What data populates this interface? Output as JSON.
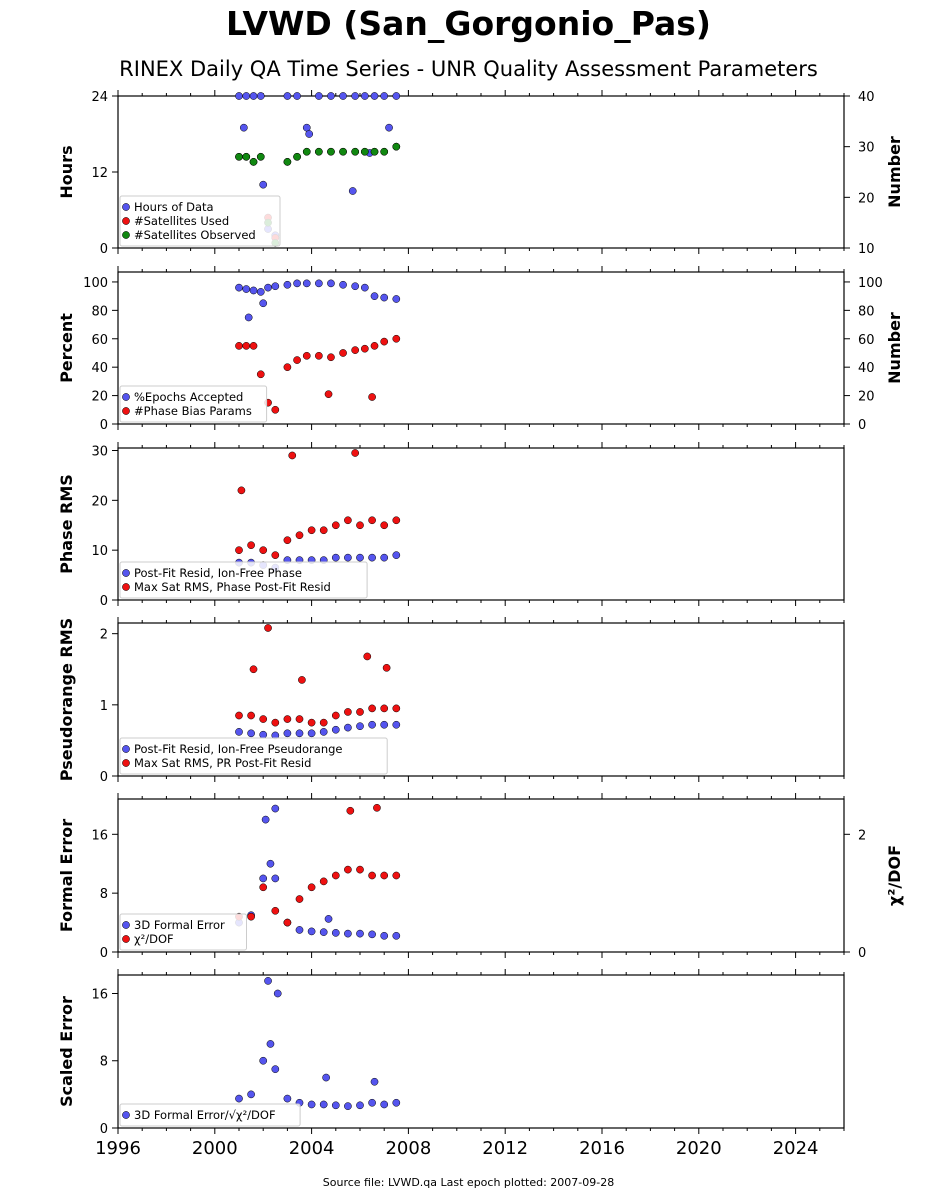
{
  "title": "LVWD (San_Gorgonio_Pas)",
  "subtitle": "RINEX Daily QA Time Series - UNR Quality Assessment Parameters",
  "footer": "Source file: LVWD.qa Last epoch plotted: 2007-09-28",
  "colors": {
    "blue": "#5555ee",
    "red": "#ee1111",
    "green": "#118811"
  },
  "chart_data": [
    {
      "type": "scatter",
      "ylabel": "Hours",
      "ylabel_right": "Number",
      "ylim": [
        0,
        24
      ],
      "yticks": [
        0,
        12,
        24
      ],
      "ylim_right": [
        10,
        40
      ],
      "yticks_right": [
        10,
        20,
        30,
        40
      ],
      "legend_position": "lower-left",
      "series": [
        {
          "name": "Hours of Data",
          "color": "#5555ee",
          "axis": "left",
          "x": [
            2001.0,
            2001.3,
            2001.6,
            2001.9,
            2002.2,
            2002.5,
            2003.0,
            2003.4,
            2003.8,
            2004.3,
            2004.8,
            2005.3,
            2005.8,
            2006.2,
            2006.6,
            2007.0,
            2007.5,
            2001.2,
            2002.0,
            2003.9,
            2005.7,
            2006.4,
            2007.2
          ],
          "y": [
            24,
            24,
            24,
            24,
            3,
            2,
            24,
            24,
            19,
            24,
            24,
            24,
            24,
            24,
            24,
            24,
            24,
            19,
            10,
            18,
            9,
            15,
            19
          ]
        },
        {
          "name": "#Satellites Used",
          "color": "#ee1111",
          "axis": "right",
          "x": [
            2001.0,
            2001.3,
            2001.6,
            2001.9,
            2002.2,
            2002.5,
            2003.0,
            2003.4,
            2003.8,
            2004.3,
            2004.8,
            2005.3,
            2005.8,
            2006.2,
            2006.6,
            2007.0,
            2007.5
          ],
          "y": [
            28,
            28,
            27,
            28,
            16,
            12,
            27,
            28,
            29,
            29,
            29,
            29,
            29,
            29,
            29,
            29,
            30
          ]
        },
        {
          "name": "#Satellites Observed",
          "color": "#118811",
          "axis": "right",
          "x": [
            2001.0,
            2001.3,
            2001.6,
            2001.9,
            2002.2,
            2002.5,
            2003.0,
            2003.4,
            2003.8,
            2004.3,
            2004.8,
            2005.3,
            2005.8,
            2006.2,
            2006.6,
            2007.0,
            2007.5
          ],
          "y": [
            28,
            28,
            27,
            28,
            15,
            11,
            27,
            28,
            29,
            29,
            29,
            29,
            29,
            29,
            29,
            29,
            30
          ]
        }
      ]
    },
    {
      "type": "scatter",
      "ylabel": "Percent",
      "ylabel_right": "Number",
      "ylim": [
        0,
        107
      ],
      "yticks": [
        0,
        20,
        40,
        60,
        80,
        100
      ],
      "ylim_right": [
        0,
        107
      ],
      "yticks_right": [
        0,
        20,
        40,
        60,
        80,
        100
      ],
      "legend_position": "lower-left",
      "series": [
        {
          "name": "%Epochs Accepted",
          "color": "#5555ee",
          "axis": "left",
          "x": [
            2001.0,
            2001.3,
            2001.6,
            2001.9,
            2002.2,
            2002.5,
            2003.0,
            2003.4,
            2003.8,
            2004.3,
            2004.8,
            2005.3,
            2005.8,
            2006.2,
            2006.6,
            2007.0,
            2007.5,
            2001.4,
            2002.0
          ],
          "y": [
            96,
            95,
            94,
            93,
            96,
            97,
            98,
            99,
            99,
            99,
            99,
            98,
            97,
            96,
            90,
            89,
            88,
            75,
            85
          ]
        },
        {
          "name": "#Phase Bias Params",
          "color": "#ee1111",
          "axis": "right",
          "x": [
            2001.0,
            2001.3,
            2001.6,
            2001.9,
            2002.2,
            2002.5,
            2003.0,
            2003.4,
            2003.8,
            2004.3,
            2004.8,
            2005.3,
            2005.8,
            2006.2,
            2006.6,
            2007.0,
            2007.5,
            2004.7,
            2006.5
          ],
          "y": [
            55,
            55,
            55,
            35,
            15,
            10,
            40,
            45,
            48,
            48,
            47,
            50,
            52,
            53,
            55,
            58,
            60,
            21,
            19
          ]
        }
      ]
    },
    {
      "type": "scatter",
      "ylabel": "Phase RMS",
      "ylim": [
        0,
        30.5
      ],
      "yticks": [
        0,
        10,
        20,
        30
      ],
      "legend_position": "lower-left",
      "series": [
        {
          "name": "Post-Fit Resid, Ion-Free Phase",
          "color": "#5555ee",
          "x": [
            2001.0,
            2001.5,
            2002.0,
            2002.5,
            2003.0,
            2003.5,
            2004.0,
            2004.5,
            2005.0,
            2005.5,
            2006.0,
            2006.5,
            2007.0,
            2007.5
          ],
          "y": [
            7.5,
            7.5,
            7.0,
            6.5,
            8.0,
            8.0,
            8.0,
            8.0,
            8.5,
            8.5,
            8.5,
            8.5,
            8.5,
            9.0
          ]
        },
        {
          "name": "Max Sat RMS, Phase Post-Fit Resid",
          "color": "#ee1111",
          "x": [
            2001.0,
            2001.5,
            2002.0,
            2002.5,
            2003.0,
            2003.5,
            2004.0,
            2004.5,
            2005.0,
            2005.5,
            2006.0,
            2006.5,
            2007.0,
            2007.5,
            2003.2,
            2005.8,
            2001.1
          ],
          "y": [
            10,
            11,
            10,
            9,
            12,
            13,
            14,
            14,
            15,
            16,
            15,
            16,
            15,
            16,
            29,
            29.5,
            22
          ]
        }
      ]
    },
    {
      "type": "scatter",
      "ylabel": "Pseudorange RMS",
      "ylim": [
        0,
        2.15
      ],
      "yticks": [
        0,
        1,
        2
      ],
      "legend_position": "lower-left",
      "series": [
        {
          "name": "Post-Fit Resid, Ion-Free Pseudorange",
          "color": "#5555ee",
          "x": [
            2001.0,
            2001.5,
            2002.0,
            2002.5,
            2003.0,
            2003.5,
            2004.0,
            2004.5,
            2005.0,
            2005.5,
            2006.0,
            2006.5,
            2007.0,
            2007.5
          ],
          "y": [
            0.62,
            0.6,
            0.58,
            0.57,
            0.6,
            0.6,
            0.6,
            0.62,
            0.65,
            0.68,
            0.7,
            0.72,
            0.72,
            0.72
          ]
        },
        {
          "name": "Max Sat RMS, PR Post-Fit Resid",
          "color": "#ee1111",
          "x": [
            2001.0,
            2001.5,
            2002.0,
            2002.5,
            2003.0,
            2003.5,
            2004.0,
            2004.5,
            2005.0,
            2005.5,
            2006.0,
            2006.5,
            2007.0,
            2007.5,
            2002.2,
            2001.6,
            2006.3,
            2007.1,
            2003.6
          ],
          "y": [
            0.85,
            0.85,
            0.8,
            0.75,
            0.8,
            0.8,
            0.75,
            0.75,
            0.85,
            0.9,
            0.9,
            0.95,
            0.95,
            0.95,
            2.08,
            1.5,
            1.68,
            1.52,
            1.35
          ]
        }
      ]
    },
    {
      "type": "scatter",
      "ylabel": "Formal Error",
      "ylabel_right": "χ²/DOF",
      "ylim": [
        0,
        20.8
      ],
      "yticks": [
        0,
        8,
        16
      ],
      "ylim_right": [
        0,
        2.6
      ],
      "yticks_right": [
        0,
        2
      ],
      "legend_position": "lower-left",
      "series": [
        {
          "name": "3D Formal Error",
          "color": "#5555ee",
          "axis": "left",
          "x": [
            2001.0,
            2001.5,
            2002.0,
            2002.3,
            2002.5,
            2003.0,
            2003.5,
            2004.0,
            2004.5,
            2005.0,
            2005.5,
            2006.0,
            2006.5,
            2007.0,
            2007.5,
            2002.1,
            2002.5,
            2004.7
          ],
          "y": [
            4,
            5,
            10,
            12,
            10,
            4,
            3,
            2.8,
            2.7,
            2.6,
            2.5,
            2.5,
            2.4,
            2.2,
            2.2,
            18,
            19.5,
            4.5
          ]
        },
        {
          "name": "χ²/DOF",
          "color": "#ee1111",
          "axis": "right",
          "x": [
            2001.0,
            2001.5,
            2002.0,
            2002.5,
            2003.0,
            2003.5,
            2004.0,
            2004.5,
            2005.0,
            2005.5,
            2006.0,
            2006.5,
            2007.0,
            2007.5,
            2005.6,
            2006.7
          ],
          "y": [
            0.6,
            0.6,
            1.1,
            0.7,
            0.5,
            0.9,
            1.1,
            1.2,
            1.3,
            1.4,
            1.4,
            1.3,
            1.3,
            1.3,
            2.4,
            2.45
          ]
        }
      ]
    },
    {
      "type": "scatter",
      "ylabel": "Scaled Error",
      "ylim": [
        0,
        18.2
      ],
      "yticks": [
        0,
        8,
        16
      ],
      "legend_position": "lower-left",
      "series": [
        {
          "name": "3D Formal Error/√χ²/DOF",
          "color": "#5555ee",
          "x": [
            2001.0,
            2001.5,
            2002.0,
            2002.3,
            2002.5,
            2003.0,
            2003.5,
            2004.0,
            2004.5,
            2005.0,
            2005.5,
            2006.0,
            2006.5,
            2007.0,
            2007.5,
            2002.2,
            2002.6,
            2004.6,
            2006.6
          ],
          "y": [
            3.5,
            4,
            8,
            10,
            7,
            3.5,
            3,
            2.8,
            2.8,
            2.7,
            2.6,
            2.7,
            3,
            2.8,
            3,
            17.5,
            16,
            6,
            5.5
          ]
        }
      ]
    }
  ],
  "x_axis": {
    "xlim": [
      1996,
      2026
    ],
    "xticks": [
      1996,
      2000,
      2004,
      2008,
      2012,
      2016,
      2020,
      2024
    ]
  }
}
